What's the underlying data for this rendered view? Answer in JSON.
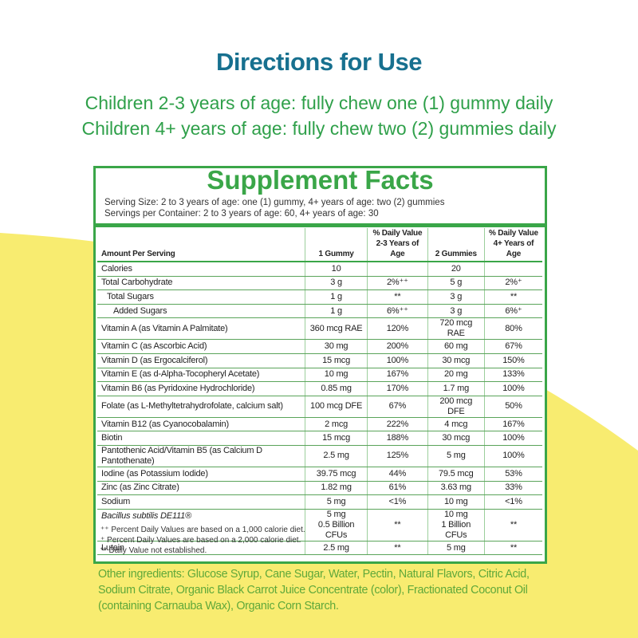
{
  "header": {
    "title": "Directions for Use",
    "directions": [
      "Children 2-3 years of age: fully chew one (1) gummy daily",
      "Children 4+ years of age: fully chew two (2) gummies daily"
    ]
  },
  "facts": {
    "title": "Supplement Facts",
    "serving_size": "Serving Size: 2 to 3 years of age: one (1) gummy, 4+ years of age: two (2) gummies",
    "servings_per_container": "Servings per Container: 2 to 3 years of age: 60, 4+ years of age: 30",
    "columns": [
      [
        "Amount Per Serving"
      ],
      [
        "1 Gummy"
      ],
      [
        "% Daily Value",
        "2-3 Years of Age"
      ],
      [
        "2 Gummies"
      ],
      [
        "% Daily Value",
        "4+ Years of Age"
      ]
    ],
    "rows": [
      [
        "Calories",
        "10",
        "",
        "20",
        ""
      ],
      [
        "Total Carbohydrate",
        "3 g",
        "2%⁺⁺",
        "5 g",
        "2%⁺"
      ],
      [
        "Total Sugars",
        "1 g",
        "**",
        "3 g",
        "**"
      ],
      [
        "Added Sugars",
        "1 g",
        "6%⁺⁺",
        "3 g",
        "6%⁺"
      ],
      [
        "Vitamin A (as Vitamin A Palmitate)",
        "360 mcg RAE",
        "120%",
        "720 mcg RAE",
        "80%"
      ],
      [
        "Vitamin C (as Ascorbic Acid)",
        "30 mg",
        "200%",
        "60 mg",
        "67%"
      ],
      [
        "Vitamin D (as Ergocalciferol)",
        "15 mcg",
        "100%",
        "30 mcg",
        "150%"
      ],
      [
        "Vitamin E (as d-Alpha-Tocopheryl Acetate)",
        "10 mg",
        "167%",
        "20 mg",
        "133%"
      ],
      [
        "Vitamin B6 (as Pyridoxine Hydrochloride)",
        "0.85 mg",
        "170%",
        "1.7 mg",
        "100%"
      ],
      [
        "Folate (as L-Methyltetrahydrofolate, calcium salt)",
        "100 mcg DFE",
        "67%",
        "200 mcg DFE",
        "50%"
      ],
      [
        "Vitamin B12 (as Cyanocobalamin)",
        "2 mcg",
        "222%",
        "4 mcg",
        "167%"
      ],
      [
        "Biotin",
        "15 mcg",
        "188%",
        "30 mcg",
        "100%"
      ],
      [
        "Pantothenic Acid/Vitamin B5 (as Calcium D Pantothenate)",
        "2.5 mg",
        "125%",
        "5 mg",
        "100%"
      ],
      [
        "Iodine (as Potassium Iodide)",
        "39.75 mcg",
        "44%",
        "79.5 mcg",
        "53%"
      ],
      [
        "Zinc (as Zinc Citrate)",
        "1.82 mg",
        "61%",
        "3.63 mg",
        "33%"
      ],
      [
        "Sodium",
        "5 mg",
        "<1%",
        "10 mg",
        "<1%"
      ],
      [
        "Bacillus subtilis DE111®",
        [
          "5 mg",
          "0.5 Billion CFUs"
        ],
        "**",
        [
          "10 mg",
          "1 Billion CFUs"
        ],
        "**"
      ],
      [
        "Lutein",
        "2.5 mg",
        "**",
        "5 mg",
        "**"
      ]
    ],
    "footnotes": [
      "⁺⁺ Percent Daily Values are based on a 1,000 calorie diet.",
      "⁺ Percent Daily Values are based on a 2,000 calorie diet.",
      "** Daily Value not established."
    ]
  },
  "ingredients": "Other ingredients: Glucose Syrup, Cane Sugar, Water, Pectin, Natural Flavors, Citric Acid, Sodium Citrate, Organic Black Carrot Juice Concentrate (color), Fractionated Coconut Oil (containing Carnauba Wax), Organic Corn Starch."
}
